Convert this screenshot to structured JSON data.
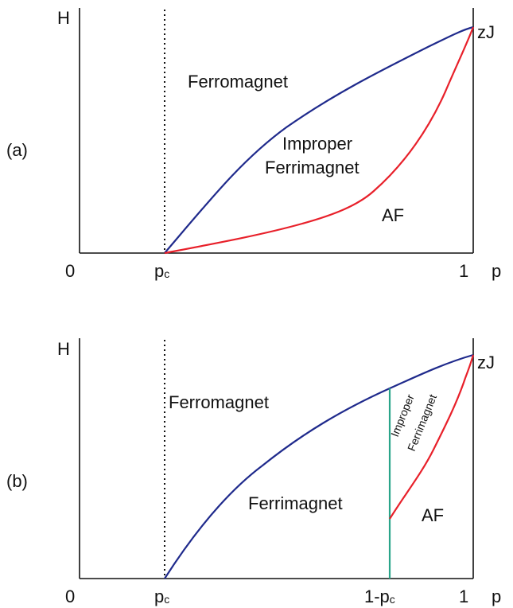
{
  "panel_a": {
    "tag": "(a)",
    "y_axis": "H",
    "x_axis": "p",
    "origin": "0",
    "pc": "p",
    "pc_sub": "c",
    "one": "1",
    "top_right": "zJ",
    "regions": {
      "ferromagnet": "Ferromagnet",
      "improper_line1": "Improper",
      "improper_line2": "Ferrimagnet",
      "af": "AF"
    }
  },
  "panel_b": {
    "tag": "(b)",
    "y_axis": "H",
    "x_axis": "p",
    "origin": "0",
    "pc": "p",
    "pc_sub": "c",
    "one_minus_pc": "1-p",
    "one_minus_pc_sub": "c",
    "one": "1",
    "top_right": "zJ",
    "regions": {
      "ferromagnet": "Ferromagnet",
      "ferrimagnet": "Ferrimagnet",
      "improper_line1": "Improper",
      "improper_line2": "Ferrimagnet",
      "af": "AF"
    }
  },
  "colors": {
    "ferro_boundary": "#1f2a8c",
    "af_boundary": "#e8202a",
    "vertical_boundary": "#2aa58a"
  }
}
